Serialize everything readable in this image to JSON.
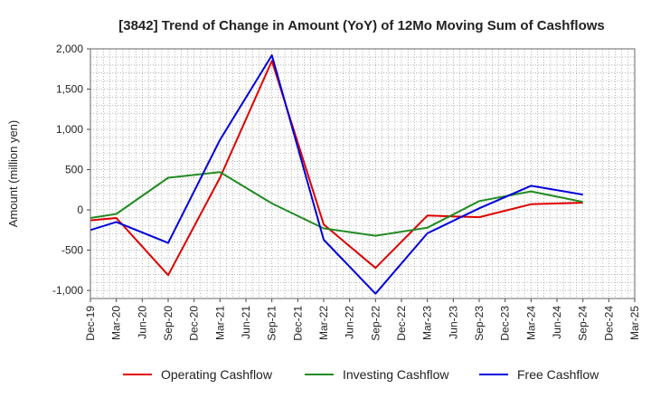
{
  "chart_data": {
    "type": "line",
    "title": "[3842]  Trend of Change in Amount (YoY) of 12Mo Moving Sum of Cashflows",
    "xlabel": "",
    "ylabel": "Amount (million yen)",
    "ylim": [
      -1100,
      2000
    ],
    "yticks": [
      -1000,
      -500,
      0,
      500,
      1000,
      1500,
      2000
    ],
    "ytick_labels": [
      "-1,000",
      "-500",
      "0",
      "500",
      "1,000",
      "1,500",
      "2,000"
    ],
    "categories": [
      "Dec-19",
      "Mar-20",
      "Jun-20",
      "Sep-20",
      "Dec-20",
      "Mar-21",
      "Jun-21",
      "Sep-21",
      "Dec-21",
      "Mar-22",
      "Jun-22",
      "Sep-22",
      "Dec-22",
      "Mar-23",
      "Jun-23",
      "Sep-23",
      "Dec-23",
      "Mar-24",
      "Jun-24",
      "Sep-24",
      "Dec-24",
      "Mar-25"
    ],
    "grid": true,
    "legend": "bottom",
    "series": [
      {
        "name": "Operating Cashflow",
        "color": "#e00000",
        "values": [
          -130,
          -100,
          null,
          -810,
          null,
          400,
          null,
          1850,
          null,
          -180,
          null,
          -720,
          null,
          -70,
          null,
          -90,
          null,
          70,
          null,
          90,
          null,
          null
        ]
      },
      {
        "name": "Investing Cashflow",
        "color": "#228b22",
        "values": [
          -100,
          -50,
          null,
          400,
          null,
          470,
          null,
          80,
          null,
          -230,
          null,
          -320,
          null,
          -220,
          null,
          110,
          null,
          230,
          null,
          100,
          null,
          null
        ]
      },
      {
        "name": "Free Cashflow",
        "color": "#0000dd",
        "values": [
          -250,
          -150,
          null,
          -410,
          null,
          870,
          null,
          1920,
          null,
          -370,
          null,
          -1040,
          null,
          -290,
          null,
          20,
          null,
          300,
          null,
          190,
          null,
          null
        ]
      }
    ]
  }
}
